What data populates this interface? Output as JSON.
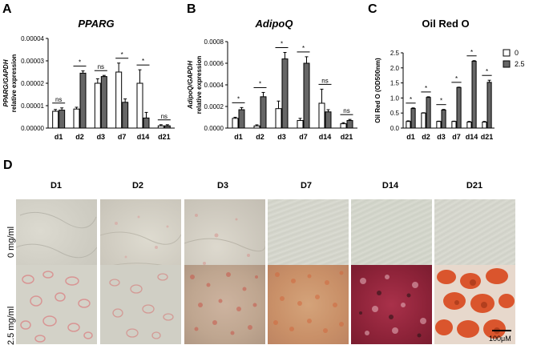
{
  "chart_data": [
    {
      "type": "bar",
      "panel": "A",
      "title": "PPARG",
      "ylabel_line1": "PPARG/GAPDH",
      "ylabel_line2": "relative expression",
      "categories": [
        "d1",
        "d2",
        "d3",
        "d7",
        "d14",
        "d21"
      ],
      "ylim": [
        0,
        4e-05
      ],
      "yticks": [
        "0.00000",
        "0.00001",
        "0.00002",
        "0.00003",
        "0.00004"
      ],
      "ytick_values": [
        0,
        1e-05,
        2e-05,
        3e-05,
        4e-05
      ],
      "series": [
        {
          "name": "0",
          "values": [
            7.5e-06,
            8.5e-06,
            2e-05,
            2.5e-05,
            2e-05,
            1e-06
          ],
          "errors": [
            8e-07,
            8e-07,
            2e-06,
            4e-06,
            6e-06,
            5e-07
          ]
        },
        {
          "name": "2.5",
          "values": [
            8e-06,
            2.45e-05,
            2.3e-05,
            1.15e-05,
            4.5e-06,
            1e-06
          ],
          "errors": [
            1e-06,
            1e-06,
            5e-07,
            1.5e-06,
            2.5e-06,
            5e-07
          ]
        }
      ],
      "significance": [
        "ns",
        "*",
        "ns",
        "*",
        "*",
        "ns"
      ]
    },
    {
      "type": "bar",
      "panel": "B",
      "title": "AdipoQ",
      "ylabel_line1": "AdipoQ/GAPDH",
      "ylabel_line2": "relative expression",
      "categories": [
        "d1",
        "d2",
        "d3",
        "d7",
        "d14",
        "d21"
      ],
      "ylim": [
        0,
        0.0008
      ],
      "yticks": [
        "0.0000",
        "0.0002",
        "0.0004",
        "0.0006",
        "0.0008"
      ],
      "ytick_values": [
        0,
        0.0002,
        0.0004,
        0.0006,
        0.0008
      ],
      "series": [
        {
          "name": "0",
          "values": [
            9e-05,
            2e-05,
            0.00018,
            7e-05,
            0.00023,
            4e-05
          ],
          "errors": [
            1e-05,
            1e-05,
            7e-05,
            2e-05,
            0.00013,
            1e-05
          ]
        },
        {
          "name": "2.5",
          "values": [
            0.00017,
            0.00029,
            0.00064,
            0.0006,
            0.00015,
            7e-05
          ],
          "errors": [
            2e-05,
            4e-05,
            6e-05,
            6e-05,
            2e-05,
            1e-05
          ]
        }
      ],
      "significance": [
        "*",
        "*",
        "*",
        "*",
        "ns",
        "ns"
      ]
    },
    {
      "type": "bar",
      "panel": "C",
      "title": "Oil Red O",
      "ylabel_line1": "Oil Red O (OD500nm)",
      "categories": [
        "d1",
        "d2",
        "d3",
        "d7",
        "d14",
        "d21"
      ],
      "ylim": [
        0,
        2.5
      ],
      "yticks": [
        "0.0",
        "0.5",
        "1.0",
        "1.5",
        "2.0",
        "2.5"
      ],
      "ytick_values": [
        0,
        0.5,
        1.0,
        1.5,
        2.0,
        2.5
      ],
      "series": [
        {
          "name": "0",
          "values": [
            0.22,
            0.5,
            0.22,
            0.22,
            0.2,
            0.2
          ],
          "errors": [
            0.02,
            0.01,
            0.01,
            0.01,
            0.02,
            0.02
          ]
        },
        {
          "name": "2.5",
          "values": [
            0.65,
            1.02,
            0.6,
            1.35,
            2.22,
            1.52
          ],
          "errors": [
            0.02,
            0.02,
            0.02,
            0.01,
            0.02,
            0.07
          ]
        }
      ],
      "significance": [
        "*",
        "*",
        "*",
        "*",
        "*",
        "*"
      ],
      "legend": {
        "position": "right",
        "labels": [
          "0",
          "2.5"
        ]
      }
    }
  ],
  "panel_letters": {
    "a": "A",
    "b": "B",
    "c": "C",
    "d": "D"
  },
  "panel_d": {
    "columns": [
      "D1",
      "D2",
      "D3",
      "D7",
      "D14",
      "D21"
    ],
    "rows": [
      "0 mg/ml",
      "2.5 mg/ml"
    ],
    "scale_bar": "100μM"
  },
  "colors": {
    "control": "#ffffff",
    "treated": "#666666",
    "stroke": "#000000"
  }
}
